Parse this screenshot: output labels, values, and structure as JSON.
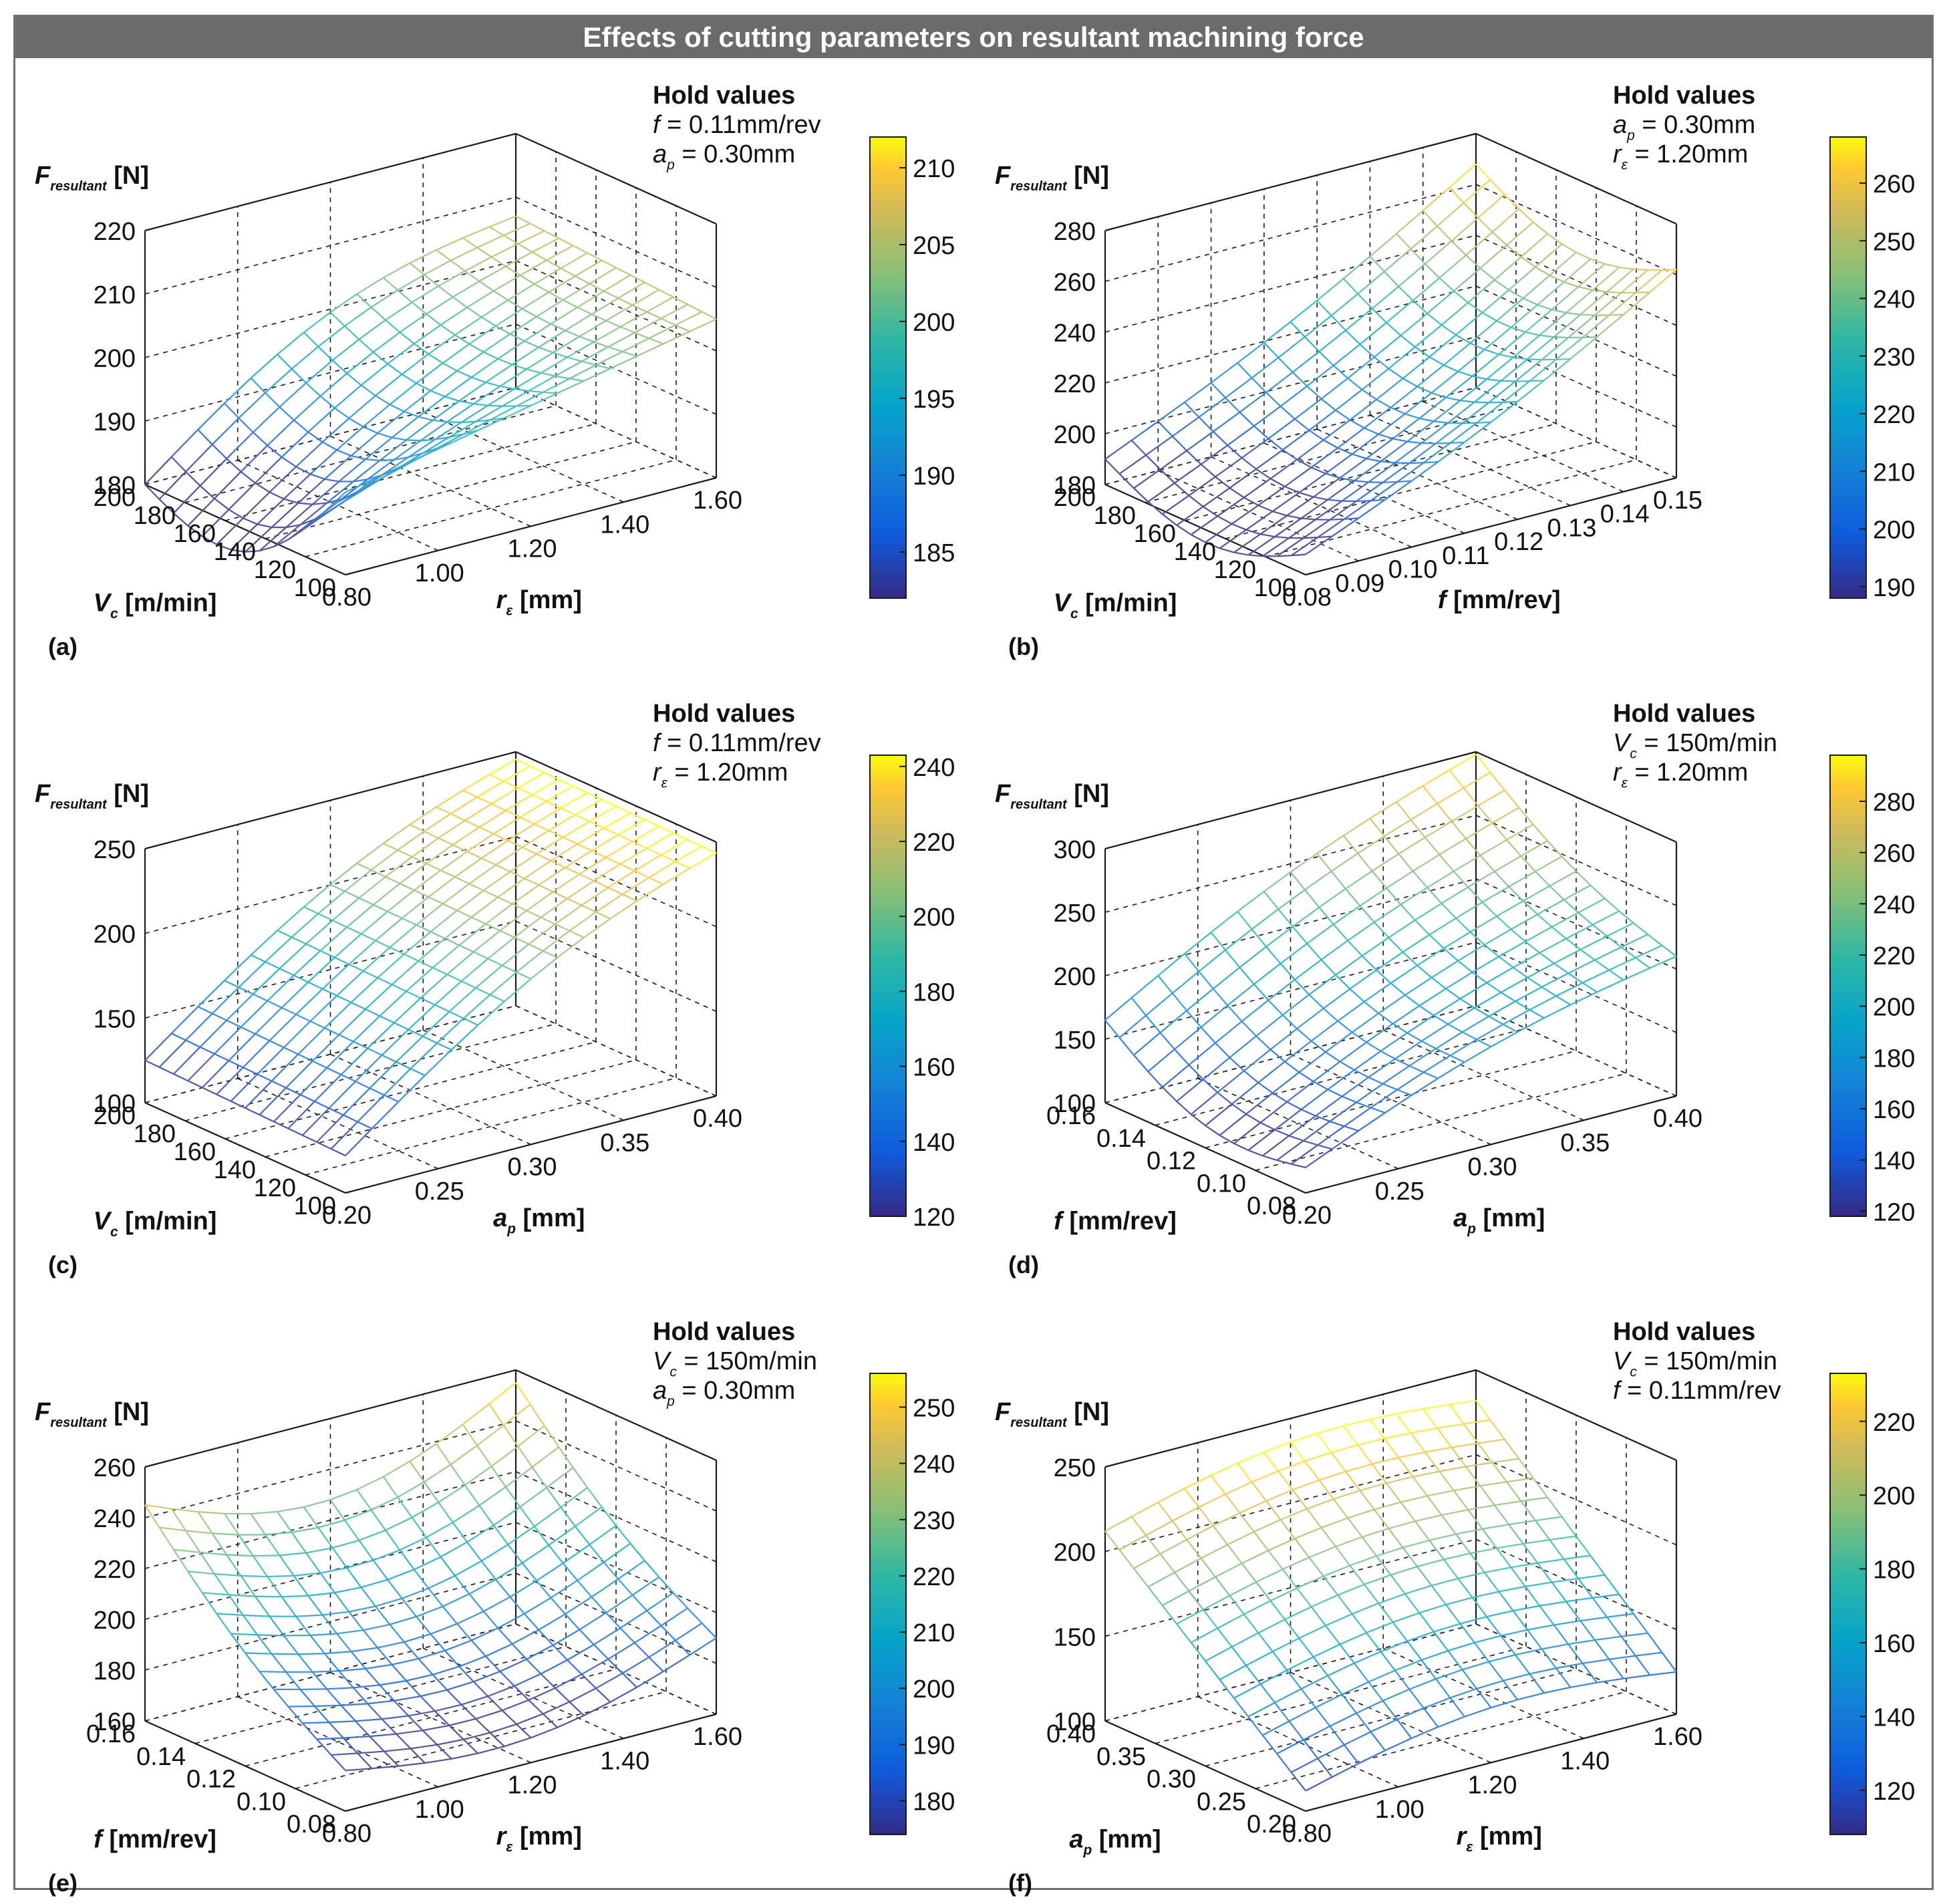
{
  "figure_title": "Effects of cutting parameters on resultant machining force",
  "chart_data": [
    {
      "type": "surface",
      "panel_label": "(a)",
      "zlabel": "F_resultant [N]",
      "hold_title": "Hold values",
      "hold_lines": [
        {
          "sym": "f",
          "sub": "",
          "val": " = 0.11mm/rev"
        },
        {
          "sym": "a",
          "sub": "p",
          "val": " = 0.30mm"
        }
      ],
      "xlabel": {
        "sym": "V",
        "sub": "c",
        "unit": " [m/min]"
      },
      "ylabel": {
        "sym": "r",
        "sub": "ε",
        "unit": " [mm]"
      },
      "x_ticks": [
        "200",
        "180",
        "160",
        "140",
        "120",
        "100"
      ],
      "y_ticks": [
        "0.80",
        "1.00",
        "1.20",
        "1.40",
        "1.60"
      ],
      "z_ticks": [
        "180",
        "190",
        "200",
        "210",
        "220"
      ],
      "zlim": [
        180,
        220
      ],
      "colorbar_ticks": [
        "185",
        "190",
        "195",
        "200",
        "205",
        "210"
      ],
      "colorbar_range": [
        182,
        212
      ],
      "surface_corners": {
        "xstart_ystart": 180,
        "xend_ystart": 193,
        "xstart_yend": 207,
        "xend_yend": 205
      },
      "surface_shape": "saddle"
    },
    {
      "type": "surface",
      "panel_label": "(b)",
      "zlabel": "F_resultant [N]",
      "hold_title": "Hold values",
      "hold_lines": [
        {
          "sym": "a",
          "sub": "p",
          "val": " = 0.30mm"
        },
        {
          "sym": "r",
          "sub": "ε",
          "val": " = 1.20mm"
        }
      ],
      "xlabel": {
        "sym": "V",
        "sub": "c",
        "unit": " [m/min]"
      },
      "ylabel": {
        "sym": "f",
        "sub": "",
        "unit": " [mm/rev]"
      },
      "x_ticks": [
        "200",
        "180",
        "160",
        "140",
        "120",
        "100"
      ],
      "y_ticks": [
        "0.08",
        "0.09",
        "0.10",
        "0.11",
        "0.12",
        "0.13",
        "0.14",
        "0.15"
      ],
      "z_ticks": [
        "180",
        "200",
        "220",
        "240",
        "260",
        "280"
      ],
      "zlim": [
        180,
        280
      ],
      "colorbar_ticks": [
        "190",
        "200",
        "210",
        "220",
        "230",
        "240",
        "250",
        "260"
      ],
      "colorbar_range": [
        188,
        268
      ],
      "surface_corners": {
        "xstart_ystart": 190,
        "xend_ystart": 188,
        "xstart_yend": 268,
        "xend_yend": 262
      },
      "surface_shape": "bowl"
    },
    {
      "type": "surface",
      "panel_label": "(c)",
      "zlabel": "F_resultant [N]",
      "hold_title": "Hold values",
      "hold_lines": [
        {
          "sym": "f",
          "sub": "",
          "val": " = 0.11mm/rev"
        },
        {
          "sym": "r",
          "sub": "ε",
          "val": " = 1.20mm"
        }
      ],
      "xlabel": {
        "sym": "V",
        "sub": "c",
        "unit": " [m/min]"
      },
      "ylabel": {
        "sym": "a",
        "sub": "p",
        "unit": " [mm]"
      },
      "x_ticks": [
        "200",
        "180",
        "160",
        "140",
        "120",
        "100"
      ],
      "y_ticks": [
        "0.20",
        "0.25",
        "0.30",
        "0.35",
        "0.40"
      ],
      "z_ticks": [
        "100",
        "150",
        "200",
        "250"
      ],
      "zlim": [
        100,
        250
      ],
      "colorbar_ticks": [
        "120",
        "140",
        "160",
        "180",
        "200",
        "220",
        "240"
      ],
      "colorbar_range": [
        120,
        243
      ],
      "surface_corners": {
        "xstart_ystart": 125,
        "xend_ystart": 122,
        "xstart_yend": 240,
        "xend_yend": 238
      },
      "surface_shape": "ridge"
    },
    {
      "type": "surface",
      "panel_label": "(d)",
      "zlabel": "F_resultant [N]",
      "hold_title": "Hold values",
      "hold_lines": [
        {
          "sym": "V",
          "sub": "c",
          "val": " = 150m/min"
        },
        {
          "sym": "r",
          "sub": "ε",
          "val": " = 1.20mm"
        }
      ],
      "xlabel": {
        "sym": "f",
        "sub": "",
        "unit": " [mm/rev]"
      },
      "ylabel": {
        "sym": "a",
        "sub": "p",
        "unit": " [mm]"
      },
      "x_ticks": [
        "0.16",
        "0.14",
        "0.12",
        "0.10",
        "0.08"
      ],
      "y_ticks": [
        "0.20",
        "0.25",
        "0.30",
        "0.35",
        "0.40"
      ],
      "z_ticks": [
        "100",
        "150",
        "200",
        "250",
        "300"
      ],
      "zlim": [
        100,
        300
      ],
      "colorbar_ticks": [
        "120",
        "140",
        "160",
        "180",
        "200",
        "220",
        "240",
        "260",
        "280"
      ],
      "colorbar_range": [
        118,
        298
      ],
      "surface_corners": {
        "xstart_ystart": 165,
        "xend_ystart": 120,
        "xstart_yend": 298,
        "xend_yend": 210
      },
      "surface_shape": "slope"
    },
    {
      "type": "surface",
      "panel_label": "(e)",
      "zlabel": "F_resultant [N]",
      "hold_title": "Hold values",
      "hold_lines": [
        {
          "sym": "V",
          "sub": "c",
          "val": " = 150m/min"
        },
        {
          "sym": "a",
          "sub": "p",
          "val": " = 0.30mm"
        }
      ],
      "xlabel": {
        "sym": "f",
        "sub": "",
        "unit": " [mm/rev]"
      },
      "ylabel": {
        "sym": "r",
        "sub": "ε",
        "unit": " [mm]"
      },
      "x_ticks": [
        "0.16",
        "0.14",
        "0.12",
        "0.10",
        "0.08"
      ],
      "y_ticks": [
        "0.80",
        "1.00",
        "1.20",
        "1.40",
        "1.60"
      ],
      "z_ticks": [
        "160",
        "180",
        "200",
        "220",
        "240",
        "260"
      ],
      "zlim": [
        160,
        260
      ],
      "colorbar_ticks": [
        "180",
        "190",
        "200",
        "210",
        "220",
        "230",
        "240",
        "250"
      ],
      "colorbar_range": [
        174,
        256
      ],
      "surface_corners": {
        "xstart_ystart": 245,
        "xend_ystart": 176,
        "xstart_yend": 255,
        "xend_yend": 190
      },
      "surface_shape": "valley"
    },
    {
      "type": "surface",
      "panel_label": "(f)",
      "zlabel": "F_resultant [N]",
      "hold_title": "Hold values",
      "hold_lines": [
        {
          "sym": "V",
          "sub": "c",
          "val": " = 150m/min"
        },
        {
          "sym": "f",
          "sub": "",
          "val": " = 0.11mm/rev"
        }
      ],
      "xlabel": {
        "sym": "a",
        "sub": "p",
        "unit": " [mm]"
      },
      "ylabel": {
        "sym": "r",
        "sub": "ε",
        "unit": " [mm]"
      },
      "x_ticks": [
        "0.40",
        "0.35",
        "0.30",
        "0.25",
        "0.20"
      ],
      "y_ticks": [
        "0.80",
        "1.00",
        "1.20",
        "1.40",
        "1.60"
      ],
      "z_ticks": [
        "100",
        "150",
        "200",
        "250"
      ],
      "zlim": [
        100,
        250
      ],
      "colorbar_ticks": [
        "120",
        "140",
        "160",
        "180",
        "200",
        "220"
      ],
      "colorbar_range": [
        108,
        233
      ],
      "surface_corners": {
        "xstart_ystart": 212,
        "xend_ystart": 112,
        "xstart_yend": 232,
        "xend_yend": 125
      },
      "surface_shape": "dome"
    }
  ]
}
